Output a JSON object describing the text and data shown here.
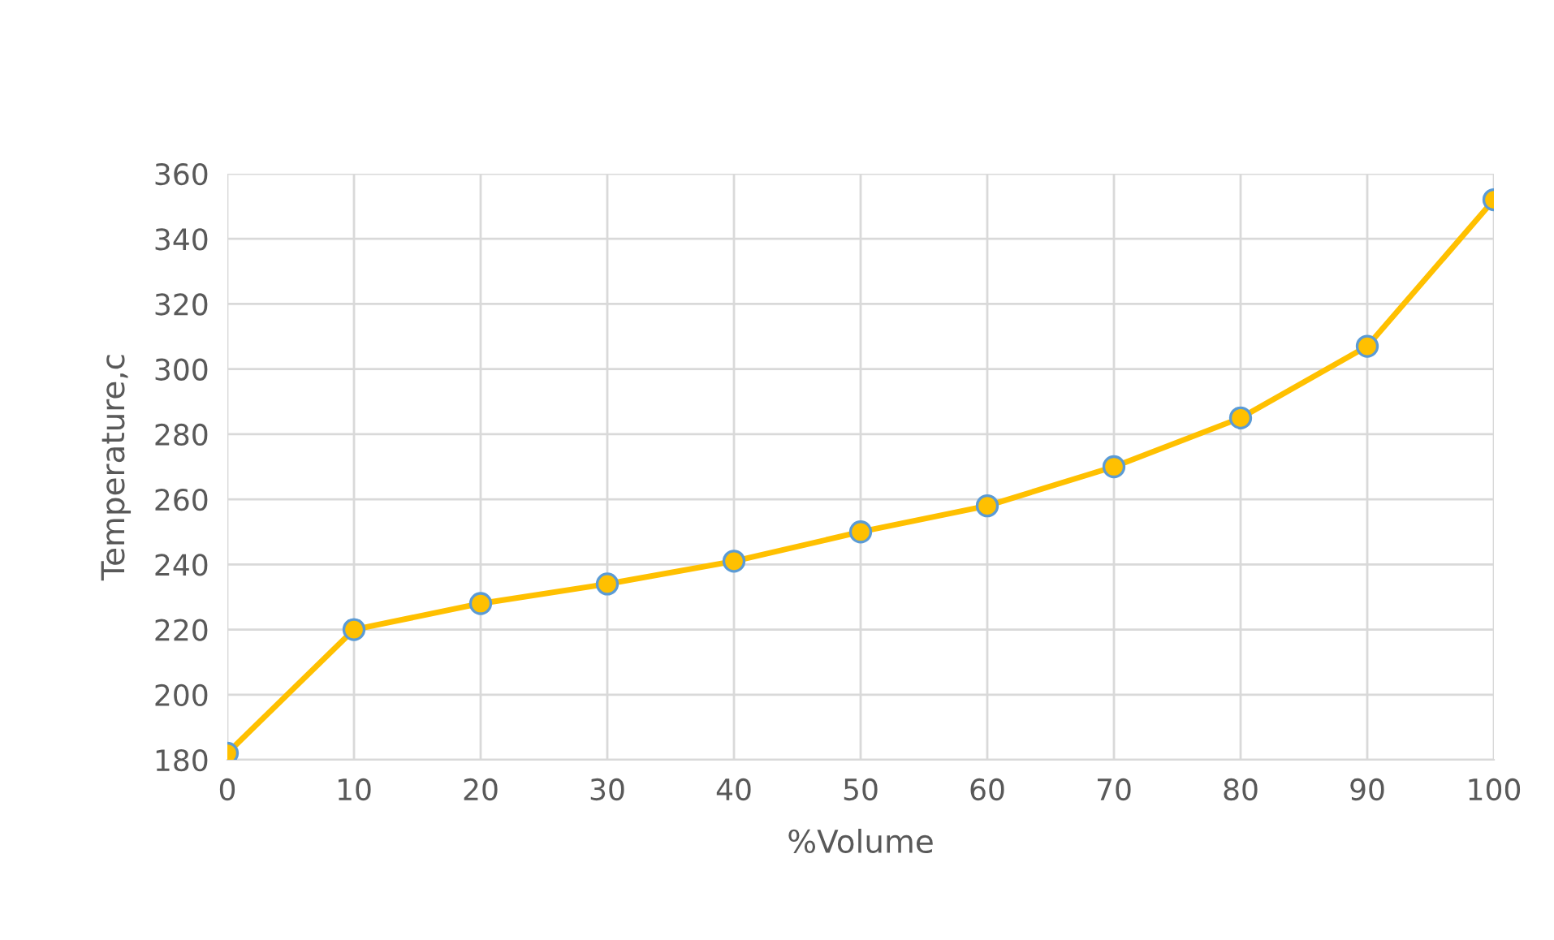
{
  "chart_data": {
    "type": "line",
    "xlabel": "%Volume",
    "ylabel": "Temperature,c",
    "x": [
      0,
      10,
      20,
      30,
      40,
      50,
      60,
      70,
      80,
      90,
      100
    ],
    "series": [
      {
        "color": "#ffc000",
        "values": [
          182,
          220,
          228,
          234,
          241,
          250,
          258,
          270,
          285,
          307,
          352
        ]
      }
    ],
    "xlim": [
      0,
      100
    ],
    "xticks": [
      0,
      10,
      20,
      30,
      40,
      50,
      60,
      70,
      80,
      90,
      100
    ],
    "ylim": [
      180,
      360
    ],
    "yticks": [
      180,
      200,
      220,
      240,
      260,
      280,
      300,
      320,
      340,
      360
    ],
    "grid": true,
    "marker": "circle",
    "line_style": "solid"
  }
}
